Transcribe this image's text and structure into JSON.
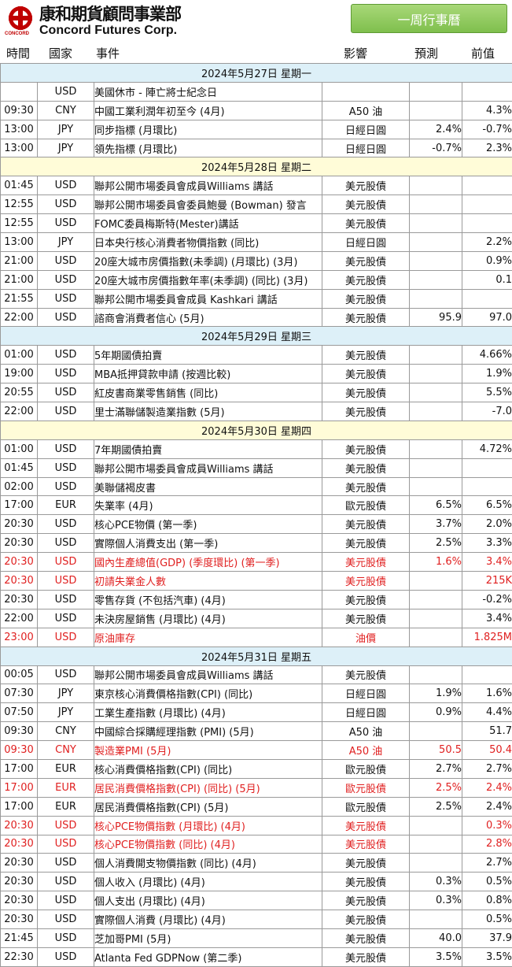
{
  "header": {
    "logo_cn": "康和期貨顧問事業部",
    "logo_en": "Concord Futures Corp.",
    "logo_small": "CONCORD",
    "button_label": "一周行事曆"
  },
  "columns": {
    "time": "時間",
    "country": "國家",
    "event": "事件",
    "impact": "影響",
    "forecast": "預測",
    "previous": "前值"
  },
  "days": [
    {
      "label": "2024年5月27日  星期一",
      "rows": [
        {
          "time": "",
          "country": "USD",
          "event": "美國休市 - 陣亡將士紀念日",
          "impact": "",
          "forecast": "",
          "previous": "",
          "hl": false
        },
        {
          "time": "09:30",
          "country": "CNY",
          "event": "中國工業利潤年初至今 (4月)",
          "impact": "A50 油",
          "forecast": "",
          "previous": "4.3%",
          "hl": false
        },
        {
          "time": "13:00",
          "country": "JPY",
          "event": "同步指標 (月環比)",
          "impact": "日經日圓",
          "forecast": "2.4%",
          "previous": "-0.7%",
          "hl": false
        },
        {
          "time": "13:00",
          "country": "JPY",
          "event": "領先指標 (月環比)",
          "impact": "日經日圓",
          "forecast": "-0.7%",
          "previous": "2.3%",
          "hl": false
        }
      ]
    },
    {
      "label": "2024年5月28日  星期二",
      "rows": [
        {
          "time": "01:45",
          "country": "USD",
          "event": "聯邦公開市場委員會成員Williams 講話",
          "impact": "美元股債",
          "forecast": "",
          "previous": "",
          "hl": false
        },
        {
          "time": "12:55",
          "country": "USD",
          "event": "聯邦公開市場委員會委員鮑曼 (Bowman) 發言",
          "impact": "美元股債",
          "forecast": "",
          "previous": "",
          "hl": false
        },
        {
          "time": "12:55",
          "country": "USD",
          "event": "FOMC委員梅斯特(Mester)講話",
          "impact": "美元股債",
          "forecast": "",
          "previous": "",
          "hl": false
        },
        {
          "time": "13:00",
          "country": "JPY",
          "event": "日本央行核心消費者物價指數 (同比)",
          "impact": "日經日圓",
          "forecast": "",
          "previous": "2.2%",
          "hl": false
        },
        {
          "time": "21:00",
          "country": "USD",
          "event": "20座大城市房價指數(未季調) (月環比) (3月)",
          "impact": "美元股債",
          "forecast": "",
          "previous": "0.9%",
          "hl": false
        },
        {
          "time": "21:00",
          "country": "USD",
          "event": "20座大城市房價指數年率(未季調) (同比) (3月)",
          "impact": "美元股債",
          "forecast": "",
          "previous": "0.1",
          "hl": false
        },
        {
          "time": "21:55",
          "country": "USD",
          "event": "聯邦公開市場委員會成員 Kashkari 講話",
          "impact": "美元股債",
          "forecast": "",
          "previous": "",
          "hl": false
        },
        {
          "time": "22:00",
          "country": "USD",
          "event": "諮商會消費者信心 (5月)",
          "impact": "美元股債",
          "forecast": "95.9",
          "previous": "97.0",
          "hl": false
        }
      ]
    },
    {
      "label": "2024年5月29日  星期三",
      "rows": [
        {
          "time": "01:00",
          "country": "USD",
          "event": "5年期國債拍賣",
          "impact": "美元股債",
          "forecast": "",
          "previous": "4.66%",
          "hl": false
        },
        {
          "time": "19:00",
          "country": "USD",
          "event": "MBA抵押貸款申請 (按週比較)",
          "impact": "美元股債",
          "forecast": "",
          "previous": "1.9%",
          "hl": false
        },
        {
          "time": "20:55",
          "country": "USD",
          "event": "紅皮書商業零售銷售 (同比)",
          "impact": "美元股債",
          "forecast": "",
          "previous": "5.5%",
          "hl": false
        },
        {
          "time": "22:00",
          "country": "USD",
          "event": "里士滿聯儲製造業指數 (5月)",
          "impact": "美元股債",
          "forecast": "",
          "previous": "-7.0",
          "hl": false
        }
      ]
    },
    {
      "label": "2024年5月30日  星期四",
      "rows": [
        {
          "time": "01:00",
          "country": "USD",
          "event": "7年期國債拍賣",
          "impact": "美元股債",
          "forecast": "",
          "previous": "4.72%",
          "hl": false
        },
        {
          "time": "01:45",
          "country": "USD",
          "event": "聯邦公開市場委員會成員Williams 講話",
          "impact": "美元股債",
          "forecast": "",
          "previous": "",
          "hl": false
        },
        {
          "time": "02:00",
          "country": "USD",
          "event": "美聯儲褐皮書",
          "impact": "美元股債",
          "forecast": "",
          "previous": "",
          "hl": false
        },
        {
          "time": "17:00",
          "country": "EUR",
          "event": "失業率 (4月)",
          "impact": "歐元股債",
          "forecast": "6.5%",
          "previous": "6.5%",
          "hl": false
        },
        {
          "time": "20:30",
          "country": "USD",
          "event": "核心PCE物價 (第一季)",
          "impact": "美元股債",
          "forecast": "3.7%",
          "previous": "2.0%",
          "hl": false
        },
        {
          "time": "20:30",
          "country": "USD",
          "event": "實際個人消費支出 (第一季)",
          "impact": "美元股債",
          "forecast": "2.5%",
          "previous": "3.3%",
          "hl": false
        },
        {
          "time": "20:30",
          "country": "USD",
          "event": "國內生產總值(GDP) (季度環比) (第一季)",
          "impact": "美元股債",
          "forecast": "1.6%",
          "previous": "3.4%",
          "hl": true
        },
        {
          "time": "20:30",
          "country": "USD",
          "event": "初請失業金人數",
          "impact": "美元股債",
          "forecast": "",
          "previous": "215K",
          "hl": true
        },
        {
          "time": "20:30",
          "country": "USD",
          "event": "零售存貨 (不包括汽車) (4月)",
          "impact": "美元股債",
          "forecast": "",
          "previous": "-0.2%",
          "hl": false
        },
        {
          "time": "22:00",
          "country": "USD",
          "event": "未決房屋銷售 (月環比) (4月)",
          "impact": "美元股債",
          "forecast": "",
          "previous": "3.4%",
          "hl": false
        },
        {
          "time": "23:00",
          "country": "USD",
          "event": "原油庫存",
          "impact": "油價",
          "forecast": "",
          "previous": "1.825M",
          "hl": true
        }
      ]
    },
    {
      "label": "2024年5月31日  星期五",
      "rows": [
        {
          "time": "00:05",
          "country": "USD",
          "event": "聯邦公開市場委員會成員Williams 講話",
          "impact": "美元股債",
          "forecast": "",
          "previous": "",
          "hl": false
        },
        {
          "time": "07:30",
          "country": "JPY",
          "event": "東京核心消費價格指數(CPI) (同比)",
          "impact": "日經日圓",
          "forecast": "1.9%",
          "previous": "1.6%",
          "hl": false
        },
        {
          "time": "07:50",
          "country": "JPY",
          "event": "工業生產指數 (月環比) (4月)",
          "impact": "日經日圓",
          "forecast": "0.9%",
          "previous": "4.4%",
          "hl": false
        },
        {
          "time": "09:30",
          "country": "CNY",
          "event": "中國綜合採購經理指數 (PMI) (5月)",
          "impact": "A50 油",
          "forecast": "",
          "previous": "51.7",
          "hl": false
        },
        {
          "time": "09:30",
          "country": "CNY",
          "event": "製造業PMI (5月)",
          "impact": "A50 油",
          "forecast": "50.5",
          "previous": "50.4",
          "hl": true
        },
        {
          "time": "17:00",
          "country": "EUR",
          "event": "核心消費價格指數(CPI) (同比)",
          "impact": "歐元股債",
          "forecast": "2.7%",
          "previous": "2.7%",
          "hl": false
        },
        {
          "time": "17:00",
          "country": "EUR",
          "event": "居民消費價格指數(CPI) (同比) (5月)",
          "impact": "歐元股債",
          "forecast": "2.5%",
          "previous": "2.4%",
          "hl": true
        },
        {
          "time": "17:00",
          "country": "EUR",
          "event": "居民消費價格指數(CPI) (5月)",
          "impact": "歐元股債",
          "forecast": "2.5%",
          "previous": "2.4%",
          "hl": false
        },
        {
          "time": "20:30",
          "country": "USD",
          "event": "核心PCE物價指數 (月環比) (4月)",
          "impact": "美元股債",
          "forecast": "",
          "previous": "0.3%",
          "hl": true
        },
        {
          "time": "20:30",
          "country": "USD",
          "event": "核心PCE物價指數 (同比) (4月)",
          "impact": "美元股債",
          "forecast": "",
          "previous": "2.8%",
          "hl": true
        },
        {
          "time": "20:30",
          "country": "USD",
          "event": "個人消費開支物價指數 (同比) (4月)",
          "impact": "美元股債",
          "forecast": "",
          "previous": "2.7%",
          "hl": false
        },
        {
          "time": "20:30",
          "country": "USD",
          "event": "個人收入 (月環比) (4月)",
          "impact": "美元股債",
          "forecast": "0.3%",
          "previous": "0.5%",
          "hl": false
        },
        {
          "time": "20:30",
          "country": "USD",
          "event": "個人支出 (月環比) (4月)",
          "impact": "美元股債",
          "forecast": "0.3%",
          "previous": "0.8%",
          "hl": false
        },
        {
          "time": "20:30",
          "country": "USD",
          "event": "實際個人消費 (月環比) (4月)",
          "impact": "美元股債",
          "forecast": "",
          "previous": "0.5%",
          "hl": false
        },
        {
          "time": "21:45",
          "country": "USD",
          "event": "芝加哥PMI (5月)",
          "impact": "美元股債",
          "forecast": "40.0",
          "previous": "37.9",
          "hl": false
        },
        {
          "time": "22:30",
          "country": "USD",
          "event": "Atlanta Fed GDPNow (第二季)",
          "impact": "美元股債",
          "forecast": "3.5%",
          "previous": "3.5%",
          "hl": false
        }
      ]
    }
  ],
  "colors": {
    "highlight_text": "#e02020",
    "day_header_blue": "#ddf0f8",
    "day_header_yellow": "#fffcd8",
    "button_green": "#7fbf4d"
  }
}
